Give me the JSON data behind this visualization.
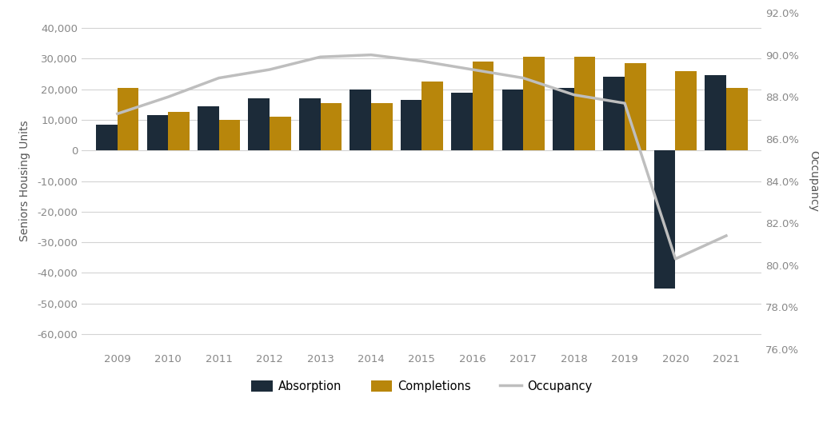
{
  "years": [
    2009,
    2010,
    2011,
    2012,
    2013,
    2014,
    2015,
    2016,
    2017,
    2018,
    2019,
    2020,
    2021
  ],
  "absorption": [
    8500,
    11500,
    14500,
    17000,
    17000,
    20000,
    16500,
    19000,
    20000,
    20500,
    24000,
    -45000,
    24500
  ],
  "completions": [
    20500,
    12500,
    10000,
    11000,
    15500,
    15500,
    22500,
    29000,
    30500,
    30500,
    28500,
    26000,
    20500
  ],
  "occupancy": [
    0.872,
    0.88,
    0.889,
    0.893,
    0.899,
    0.9,
    0.897,
    0.893,
    0.889,
    0.881,
    0.877,
    0.803,
    0.814
  ],
  "bar_width": 0.42,
  "absorption_color": "#1c2b39",
  "completions_color": "#b8860b",
  "occupancy_color": "#bebebe",
  "ylim_left": [
    -65000,
    45000
  ],
  "ylim_right": [
    0.76,
    0.92
  ],
  "yticks_left": [
    -60000,
    -50000,
    -40000,
    -30000,
    -20000,
    -10000,
    0,
    10000,
    20000,
    30000,
    40000
  ],
  "yticks_right": [
    0.76,
    0.78,
    0.8,
    0.82,
    0.84,
    0.86,
    0.88,
    0.9,
    0.92
  ],
  "ylabel_left": "Seniors Housing Units",
  "ylabel_right": "Occupancy",
  "background_color": "#ffffff",
  "grid_color": "#d3d3d3",
  "legend_labels": [
    "Absorption",
    "Completions",
    "Occupancy"
  ],
  "tick_color": "#888888",
  "label_color": "#555555"
}
